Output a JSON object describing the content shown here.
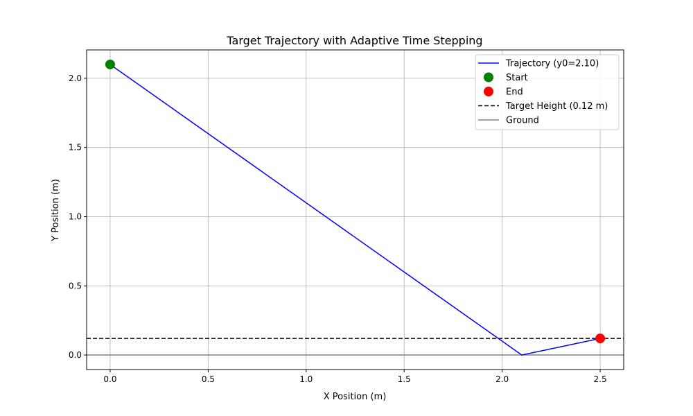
{
  "chart_data": {
    "type": "line",
    "title": "Target Trajectory with Adaptive Time Stepping",
    "xlabel": "X Position (m)",
    "ylabel": "Y Position (m)",
    "xlim": [
      -0.12,
      2.62
    ],
    "ylim": [
      -0.105,
      2.205
    ],
    "x_ticks": [
      0.0,
      0.5,
      1.0,
      1.5,
      2.0,
      2.5
    ],
    "x_tick_labels": [
      "0.0",
      "0.5",
      "1.0",
      "1.5",
      "2.0",
      "2.5"
    ],
    "y_ticks": [
      0.0,
      0.5,
      1.0,
      1.5,
      2.0
    ],
    "y_tick_labels": [
      "0.0",
      "0.5",
      "1.0",
      "1.5",
      "2.0"
    ],
    "grid": true,
    "legend_position": "top-right",
    "series": [
      {
        "name": "Trajectory (y0=2.10)",
        "kind": "line",
        "color": "#0000ff",
        "x": [
          0.0,
          2.1,
          2.5
        ],
        "y": [
          2.1,
          0.0,
          0.12
        ]
      },
      {
        "name": "Start",
        "kind": "scatter",
        "color": "#008000",
        "x": [
          0.0
        ],
        "y": [
          2.1
        ]
      },
      {
        "name": "End",
        "kind": "scatter",
        "color": "#ff0000",
        "x": [
          2.5
        ],
        "y": [
          0.12
        ]
      },
      {
        "name": "Target Height (0.12 m)",
        "kind": "hline",
        "style": "dashed",
        "color": "#000000",
        "y": 0.12
      },
      {
        "name": "Ground",
        "kind": "hline",
        "style": "solid",
        "color": "#808080",
        "y": 0.0
      }
    ]
  }
}
